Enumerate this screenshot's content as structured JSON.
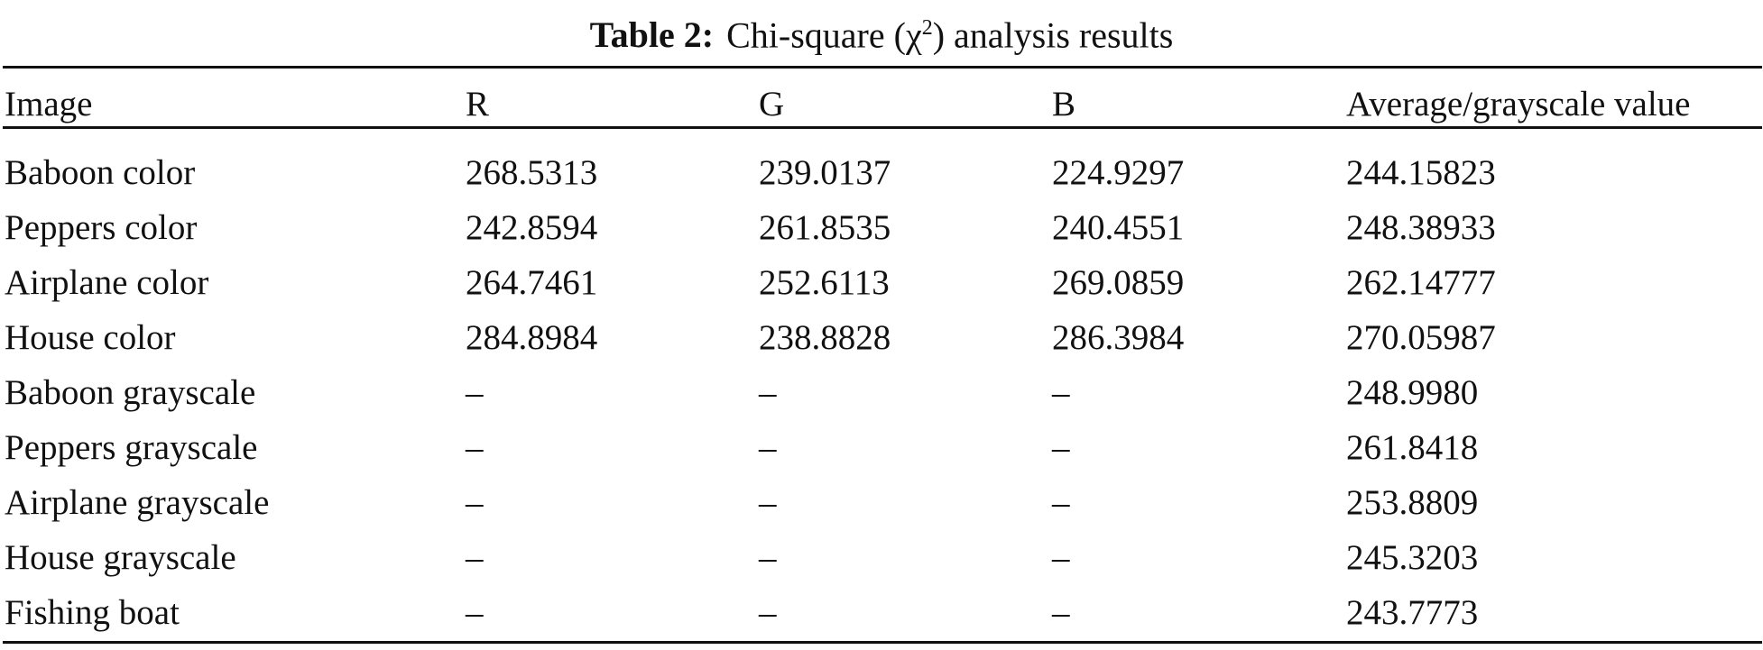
{
  "caption": {
    "label": "Table 2:",
    "text": "Chi-square (χ",
    "sup": "2",
    "text_after": ") analysis results"
  },
  "table": {
    "headers": [
      "Image",
      "R",
      "G",
      "B",
      "Average/grayscale value"
    ],
    "rows": [
      [
        "Baboon color",
        "268.5313",
        "239.0137",
        "224.9297",
        "244.15823"
      ],
      [
        "Peppers color",
        "242.8594",
        "261.8535",
        "240.4551",
        "248.38933"
      ],
      [
        "Airplane color",
        "264.7461",
        "252.6113",
        "269.0859",
        "262.14777"
      ],
      [
        "House color",
        "284.8984",
        "238.8828",
        "286.3984",
        "270.05987"
      ],
      [
        "Baboon grayscale",
        "–",
        "–",
        "–",
        "248.9980"
      ],
      [
        "Peppers grayscale",
        "–",
        "–",
        "–",
        "261.8418"
      ],
      [
        "Airplane grayscale",
        "–",
        "–",
        "–",
        "253.8809"
      ],
      [
        "House grayscale",
        "–",
        "–",
        "–",
        "245.3203"
      ],
      [
        "Fishing boat",
        "–",
        "–",
        "–",
        "243.7773"
      ]
    ]
  }
}
